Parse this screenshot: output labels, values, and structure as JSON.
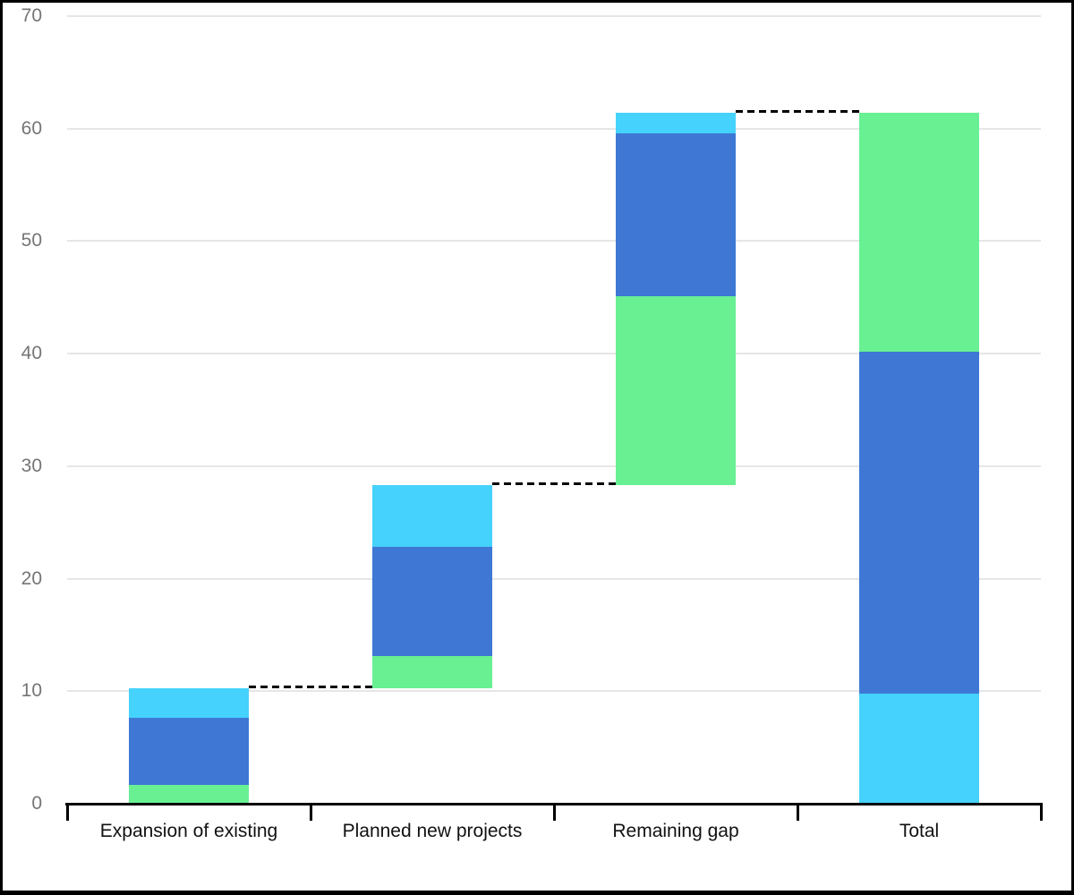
{
  "chart_data": {
    "type": "bar",
    "subtype": "stacked-waterfall",
    "title": "",
    "categories": [
      "Expansion of existing",
      "Planned new projects",
      "Remaining gap",
      "Total"
    ],
    "ylim": [
      0,
      70
    ],
    "yticks": [
      0,
      10,
      20,
      30,
      40,
      50,
      60,
      70
    ],
    "grid": true,
    "legend": "none",
    "series": [
      {
        "name": "green",
        "color": "#68F093"
      },
      {
        "name": "blue",
        "color": "#3E78D4"
      },
      {
        "name": "cyan",
        "color": "#45D2FC"
      }
    ],
    "bars": [
      {
        "label": "Expansion of existing",
        "base": 0,
        "total": 10.3,
        "segments": [
          {
            "series": "green",
            "from": 0,
            "to": 1.7
          },
          {
            "series": "blue",
            "from": 1.7,
            "to": 7.6
          },
          {
            "series": "cyan",
            "from": 7.6,
            "to": 10.3
          }
        ]
      },
      {
        "label": "Planned new projects",
        "base": 10.3,
        "total": 28.3,
        "segments": [
          {
            "series": "green",
            "from": 10.3,
            "to": 13.1
          },
          {
            "series": "blue",
            "from": 13.1,
            "to": 22.8
          },
          {
            "series": "cyan",
            "from": 22.8,
            "to": 28.3
          }
        ]
      },
      {
        "label": "Remaining gap",
        "base": 28.3,
        "total": 61.4,
        "segments": [
          {
            "series": "green",
            "from": 28.3,
            "to": 45.1
          },
          {
            "series": "blue",
            "from": 45.1,
            "to": 59.6
          },
          {
            "series": "cyan",
            "from": 59.6,
            "to": 61.4
          }
        ]
      },
      {
        "label": "Total",
        "base": 0,
        "total": 61.4,
        "segments": [
          {
            "series": "cyan",
            "from": 0,
            "to": 9.8
          },
          {
            "series": "blue",
            "from": 9.8,
            "to": 40.2
          },
          {
            "series": "green",
            "from": 40.2,
            "to": 61.4
          }
        ]
      }
    ],
    "connectors": [
      {
        "value": 10.3,
        "from_bar": 0,
        "to_bar": 1
      },
      {
        "value": 28.3,
        "from_bar": 1,
        "to_bar": 2
      },
      {
        "value": 61.4,
        "from_bar": 2,
        "to_bar": 3
      }
    ],
    "colors": {
      "background": "#FFFFFF",
      "frame": "#000000",
      "axis": "#000000",
      "gridline": "#E6E6E6",
      "tick_label": "#757575",
      "category_label": "#111111",
      "connector": "#000000"
    }
  }
}
